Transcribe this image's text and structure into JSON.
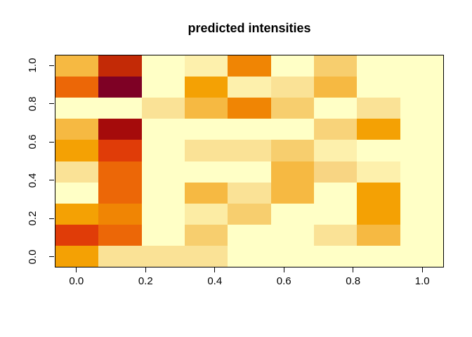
{
  "title": "predicted intensities",
  "colors": {
    "background": "#FFFFFF",
    "plot_border": "#000000",
    "text": "#000000"
  },
  "chart_data": {
    "type": "heatmap",
    "title": "predicted intensities",
    "xlabel": "",
    "ylabel": "",
    "legend": "none",
    "grid": false,
    "n_cols": 9,
    "n_rows": 10,
    "x_values": [
      0,
      0.125,
      0.25,
      0.375,
      0.5,
      0.625,
      0.75,
      0.875,
      1.0
    ],
    "y_values": [
      0,
      0.1111,
      0.2222,
      0.3333,
      0.4444,
      0.5556,
      0.6667,
      0.7778,
      0.8889,
      1.0
    ],
    "x_range": [
      -0.0625,
      1.0625
    ],
    "y_range": [
      -0.0556,
      1.0556
    ],
    "x_tick_values": [
      0.0,
      0.2,
      0.4,
      0.6,
      0.8,
      1.0
    ],
    "x_tick_labels": [
      "0.0",
      "0.2",
      "0.4",
      "0.6",
      "0.8",
      "1.0"
    ],
    "y_tick_values": [
      0.0,
      0.2,
      0.4,
      0.6,
      0.8,
      1.0
    ],
    "y_tick_labels": [
      "0.0",
      "0.2",
      "0.4",
      "0.6",
      "0.8",
      "1.0"
    ],
    "cell_colors_rows_top_to_bottom": [
      [
        "#F6B942",
        "#C32A06",
        "#FFFFC6",
        "#FDF0AC",
        "#F08504",
        "#FFFFC6",
        "#F7CE6E",
        "#FFFFC6",
        "#FFFFC6"
      ],
      [
        "#EC6707",
        "#7E0125",
        "#FFFFC6",
        "#F4A104",
        "#FDF0AC",
        "#FAE296",
        "#F6B942",
        "#FFFFC6",
        "#FFFFC6"
      ],
      [
        "#FFFFC6",
        "#FFFFC6",
        "#FAE296",
        "#F6B942",
        "#F08504",
        "#F7CE6E",
        "#FFFFC6",
        "#FAE296",
        "#FFFFC6"
      ],
      [
        "#F6B942",
        "#A50B0B",
        "#FFFFC6",
        "#FFFFC6",
        "#FFFFC6",
        "#FFFFC6",
        "#F8D37A",
        "#F4A104",
        "#FFFFC6"
      ],
      [
        "#F4A104",
        "#E03C08",
        "#FFFFC6",
        "#FAE296",
        "#FAE296",
        "#F7CE6E",
        "#FDF0AC",
        "#FFFFC6",
        "#FFFFC6"
      ],
      [
        "#FAE296",
        "#EC6707",
        "#FFFFC6",
        "#FFFFC6",
        "#FFFFC6",
        "#F6B942",
        "#F8D583",
        "#FDF0AC",
        "#FFFFC6"
      ],
      [
        "#FFFFC6",
        "#EC6707",
        "#FFFFC6",
        "#F6B942",
        "#FAE296",
        "#F6B942",
        "#FFFFC6",
        "#F4A104",
        "#FFFFC6"
      ],
      [
        "#F4A104",
        "#F08504",
        "#FFFFC6",
        "#FCECA4",
        "#F7CE6E",
        "#FFFFC6",
        "#FFFFC6",
        "#F4A104",
        "#FFFFC6"
      ],
      [
        "#E03C08",
        "#EC6707",
        "#FFFFC6",
        "#F7CE6E",
        "#FFFFC6",
        "#FFFFC6",
        "#FAE296",
        "#F6B942",
        "#FFFFC6"
      ],
      [
        "#F4A104",
        "#FAE296",
        "#FAE296",
        "#FAE296",
        "#FFFFC6",
        "#FFFFC6",
        "#FFFFC6",
        "#FFFFC6",
        "#FFFFC6"
      ]
    ]
  }
}
